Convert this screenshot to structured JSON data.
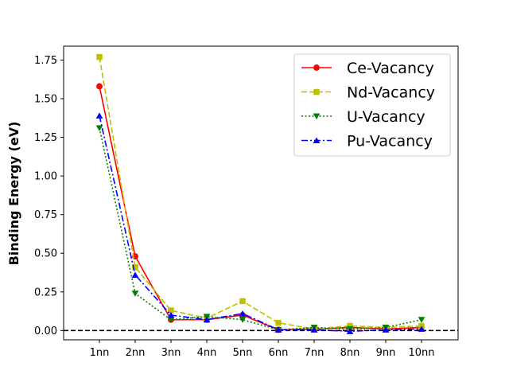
{
  "chart_data": {
    "type": "line",
    "categories": [
      "1nn",
      "2nn",
      "3nn",
      "4nn",
      "5nn",
      "6nn",
      "7nn",
      "8nn",
      "9nn",
      "10nn"
    ],
    "ylabel": "Binding Energy (eV)",
    "xlabel": "",
    "ylim": [
      -0.06,
      1.84
    ],
    "yticks": [
      "0.00",
      "0.25",
      "0.50",
      "0.75",
      "1.00",
      "1.25",
      "1.50",
      "1.75"
    ],
    "reference_line": {
      "y": 0,
      "style": "dashed",
      "color": "#000000"
    },
    "legend_position": "top-right",
    "grid": false,
    "series": [
      {
        "name": "Ce-Vacancy",
        "color": "#ff0000",
        "marker": "circle",
        "line": "solid",
        "values": [
          1.58,
          0.48,
          0.07,
          0.07,
          0.1,
          0.005,
          0.01,
          0.02,
          0.01,
          0.02
        ]
      },
      {
        "name": "Nd-Vacancy",
        "color": "#bfbf00",
        "marker": "square",
        "line": "dashed",
        "values": [
          1.77,
          0.41,
          0.13,
          0.08,
          0.19,
          0.05,
          0.01,
          0.03,
          0.02,
          0.03
        ]
      },
      {
        "name": "U-Vacancy",
        "color": "#008000",
        "marker": "triangle-down",
        "line": "dotted",
        "values": [
          1.31,
          0.24,
          0.07,
          0.09,
          0.07,
          0.005,
          0.02,
          0.01,
          0.02,
          0.07
        ]
      },
      {
        "name": "Pu-Vacancy",
        "color": "#0000ff",
        "marker": "triangle-up",
        "line": "dashdot",
        "values": [
          1.39,
          0.36,
          0.1,
          0.07,
          0.11,
          0.005,
          0.005,
          -0.005,
          0.005,
          0.01
        ]
      }
    ]
  }
}
